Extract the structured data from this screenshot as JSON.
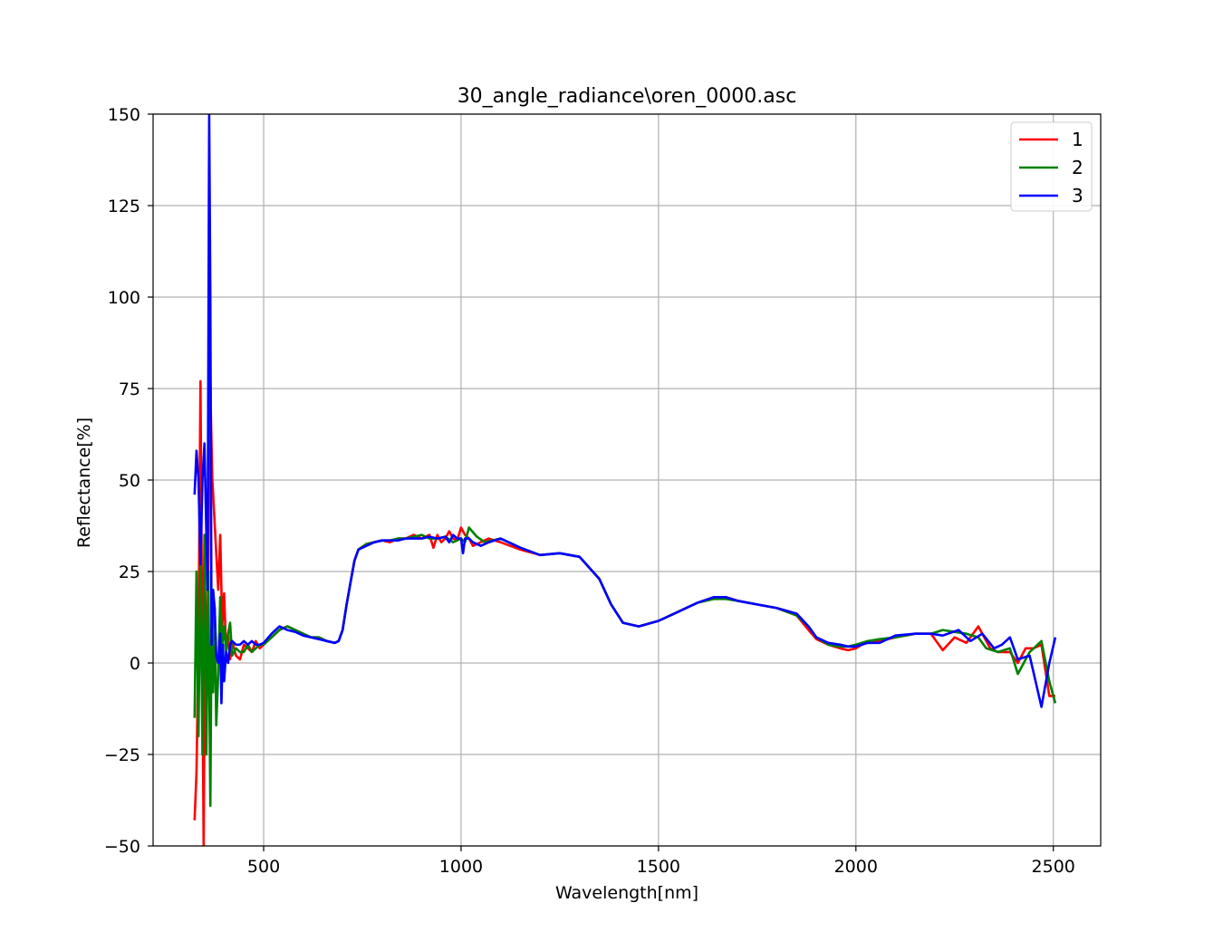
{
  "chart_data": {
    "type": "line",
    "title": "30_angle_radiance\\oren_0000.asc",
    "xlabel": "Wavelength[nm]",
    "ylabel": "Reflectance[%]",
    "xlim": [
      220,
      2620
    ],
    "ylim": [
      -50,
      150
    ],
    "xticks": [
      500,
      1000,
      1500,
      2000,
      2500
    ],
    "yticks": [
      -50,
      -25,
      0,
      25,
      50,
      75,
      100,
      125,
      150
    ],
    "grid": true,
    "legend_position": "top-right",
    "series": [
      {
        "name": "1",
        "color": "#ff0000",
        "points": [
          [
            325,
            -43
          ],
          [
            330,
            -30
          ],
          [
            335,
            5
          ],
          [
            340,
            77
          ],
          [
            345,
            -5
          ],
          [
            348,
            -50
          ],
          [
            352,
            20
          ],
          [
            356,
            -10
          ],
          [
            360,
            30
          ],
          [
            363,
            98
          ],
          [
            366,
            70
          ],
          [
            370,
            50
          ],
          [
            375,
            40
          ],
          [
            380,
            30
          ],
          [
            385,
            20
          ],
          [
            390,
            35
          ],
          [
            395,
            10
          ],
          [
            400,
            19
          ],
          [
            405,
            3
          ],
          [
            410,
            8
          ],
          [
            415,
            1
          ],
          [
            420,
            6
          ],
          [
            430,
            2
          ],
          [
            440,
            1
          ],
          [
            450,
            5
          ],
          [
            460,
            4
          ],
          [
            470,
            3
          ],
          [
            480,
            6
          ],
          [
            490,
            4
          ],
          [
            500,
            5
          ],
          [
            520,
            7
          ],
          [
            540,
            9
          ],
          [
            560,
            10
          ],
          [
            580,
            9
          ],
          [
            600,
            8
          ],
          [
            620,
            7
          ],
          [
            640,
            7
          ],
          [
            660,
            6
          ],
          [
            680,
            5.5
          ],
          [
            690,
            6
          ],
          [
            700,
            9
          ],
          [
            710,
            16
          ],
          [
            720,
            22
          ],
          [
            730,
            28
          ],
          [
            740,
            31
          ],
          [
            760,
            32.5
          ],
          [
            780,
            33
          ],
          [
            800,
            33.5
          ],
          [
            820,
            33
          ],
          [
            840,
            34
          ],
          [
            860,
            34
          ],
          [
            880,
            35
          ],
          [
            900,
            34
          ],
          [
            920,
            35
          ],
          [
            930,
            31.5
          ],
          [
            940,
            35
          ],
          [
            950,
            33
          ],
          [
            960,
            34
          ],
          [
            970,
            36
          ],
          [
            980,
            34
          ],
          [
            990,
            33.5
          ],
          [
            1000,
            37
          ],
          [
            1010,
            35
          ],
          [
            1020,
            34
          ],
          [
            1030,
            32
          ],
          [
            1050,
            33
          ],
          [
            1070,
            34
          ],
          [
            1100,
            33
          ],
          [
            1150,
            31
          ],
          [
            1200,
            29.5
          ],
          [
            1250,
            30
          ],
          [
            1300,
            29
          ],
          [
            1350,
            23
          ],
          [
            1380,
            16
          ],
          [
            1410,
            11
          ],
          [
            1450,
            10
          ],
          [
            1500,
            11.5
          ],
          [
            1550,
            14
          ],
          [
            1600,
            16.5
          ],
          [
            1640,
            18
          ],
          [
            1670,
            18
          ],
          [
            1700,
            17
          ],
          [
            1750,
            16
          ],
          [
            1800,
            15
          ],
          [
            1850,
            13
          ],
          [
            1880,
            9
          ],
          [
            1900,
            6.5
          ],
          [
            1930,
            5
          ],
          [
            1960,
            4
          ],
          [
            1980,
            3.5
          ],
          [
            2000,
            4
          ],
          [
            2030,
            6
          ],
          [
            2060,
            6
          ],
          [
            2100,
            7
          ],
          [
            2150,
            8
          ],
          [
            2190,
            8
          ],
          [
            2220,
            3.5
          ],
          [
            2250,
            7
          ],
          [
            2280,
            5.5
          ],
          [
            2310,
            10
          ],
          [
            2340,
            4
          ],
          [
            2360,
            3
          ],
          [
            2390,
            3
          ],
          [
            2410,
            0
          ],
          [
            2430,
            4
          ],
          [
            2450,
            4
          ],
          [
            2470,
            5
          ],
          [
            2490,
            -9
          ],
          [
            2505,
            -9
          ]
        ]
      },
      {
        "name": "2",
        "color": "#008000",
        "points": [
          [
            325,
            -15
          ],
          [
            330,
            25
          ],
          [
            335,
            -20
          ],
          [
            340,
            30
          ],
          [
            345,
            -25
          ],
          [
            350,
            35
          ],
          [
            355,
            -25
          ],
          [
            360,
            25
          ],
          [
            365,
            -39
          ],
          [
            368,
            10
          ],
          [
            372,
            -8
          ],
          [
            376,
            15
          ],
          [
            380,
            -17
          ],
          [
            385,
            -3
          ],
          [
            390,
            18
          ],
          [
            395,
            5
          ],
          [
            400,
            10
          ],
          [
            405,
            3
          ],
          [
            410,
            8
          ],
          [
            415,
            11
          ],
          [
            420,
            2
          ],
          [
            430,
            4
          ],
          [
            440,
            3
          ],
          [
            450,
            3
          ],
          [
            460,
            5
          ],
          [
            470,
            3
          ],
          [
            480,
            4
          ],
          [
            490,
            5
          ],
          [
            500,
            5
          ],
          [
            520,
            7
          ],
          [
            540,
            9
          ],
          [
            560,
            10
          ],
          [
            580,
            9
          ],
          [
            600,
            8
          ],
          [
            620,
            7
          ],
          [
            640,
            7
          ],
          [
            660,
            6
          ],
          [
            680,
            5.5
          ],
          [
            690,
            6
          ],
          [
            700,
            9
          ],
          [
            710,
            16
          ],
          [
            720,
            22
          ],
          [
            730,
            28
          ],
          [
            740,
            31
          ],
          [
            760,
            32.5
          ],
          [
            780,
            33
          ],
          [
            800,
            33.5
          ],
          [
            820,
            33.5
          ],
          [
            840,
            34
          ],
          [
            860,
            34
          ],
          [
            880,
            34.5
          ],
          [
            900,
            35
          ],
          [
            920,
            34
          ],
          [
            940,
            34
          ],
          [
            960,
            34.5
          ],
          [
            980,
            33
          ],
          [
            1000,
            34
          ],
          [
            1010,
            33
          ],
          [
            1020,
            37
          ],
          [
            1040,
            34.5
          ],
          [
            1060,
            33
          ],
          [
            1080,
            33.5
          ],
          [
            1100,
            34
          ],
          [
            1150,
            31.5
          ],
          [
            1200,
            29.5
          ],
          [
            1250,
            30
          ],
          [
            1300,
            29
          ],
          [
            1350,
            23
          ],
          [
            1380,
            16
          ],
          [
            1410,
            11
          ],
          [
            1450,
            10
          ],
          [
            1500,
            11.5
          ],
          [
            1550,
            14
          ],
          [
            1600,
            16.5
          ],
          [
            1640,
            17.5
          ],
          [
            1670,
            17.5
          ],
          [
            1700,
            17
          ],
          [
            1750,
            16
          ],
          [
            1800,
            15
          ],
          [
            1850,
            13
          ],
          [
            1880,
            10
          ],
          [
            1900,
            7
          ],
          [
            1930,
            5
          ],
          [
            1960,
            4.5
          ],
          [
            1980,
            4.5
          ],
          [
            2000,
            5
          ],
          [
            2030,
            6
          ],
          [
            2060,
            6.5
          ],
          [
            2100,
            7
          ],
          [
            2150,
            8
          ],
          [
            2190,
            8
          ],
          [
            2220,
            9
          ],
          [
            2250,
            8.5
          ],
          [
            2280,
            8
          ],
          [
            2310,
            7
          ],
          [
            2330,
            4
          ],
          [
            2360,
            3
          ],
          [
            2390,
            4
          ],
          [
            2410,
            -3
          ],
          [
            2440,
            3
          ],
          [
            2470,
            6
          ],
          [
            2490,
            -5
          ],
          [
            2505,
            -11
          ]
        ]
      },
      {
        "name": "3",
        "color": "#0000ff",
        "points": [
          [
            325,
            46
          ],
          [
            330,
            58
          ],
          [
            335,
            50
          ],
          [
            340,
            27
          ],
          [
            345,
            50
          ],
          [
            350,
            60
          ],
          [
            354,
            40
          ],
          [
            358,
            20
          ],
          [
            362,
            150
          ],
          [
            365,
            100
          ],
          [
            368,
            5
          ],
          [
            372,
            20
          ],
          [
            376,
            15
          ],
          [
            380,
            2
          ],
          [
            385,
            0
          ],
          [
            390,
            8
          ],
          [
            393,
            -11
          ],
          [
            397,
            5
          ],
          [
            400,
            -5
          ],
          [
            405,
            3
          ],
          [
            410,
            0
          ],
          [
            415,
            5
          ],
          [
            420,
            6
          ],
          [
            430,
            5
          ],
          [
            440,
            5
          ],
          [
            450,
            6
          ],
          [
            460,
            5
          ],
          [
            470,
            6
          ],
          [
            480,
            5
          ],
          [
            490,
            5
          ],
          [
            500,
            5.5
          ],
          [
            520,
            8
          ],
          [
            540,
            10
          ],
          [
            560,
            9
          ],
          [
            580,
            8.5
          ],
          [
            600,
            7.5
          ],
          [
            620,
            7
          ],
          [
            640,
            6.5
          ],
          [
            660,
            6
          ],
          [
            680,
            5.5
          ],
          [
            690,
            6
          ],
          [
            700,
            9
          ],
          [
            710,
            16
          ],
          [
            720,
            22
          ],
          [
            730,
            28
          ],
          [
            740,
            31
          ],
          [
            760,
            32
          ],
          [
            780,
            33
          ],
          [
            800,
            33.5
          ],
          [
            820,
            33.5
          ],
          [
            840,
            33.5
          ],
          [
            860,
            34
          ],
          [
            880,
            34
          ],
          [
            900,
            34
          ],
          [
            920,
            34.5
          ],
          [
            940,
            34
          ],
          [
            960,
            34.5
          ],
          [
            970,
            33
          ],
          [
            980,
            35
          ],
          [
            990,
            34
          ],
          [
            1000,
            34
          ],
          [
            1005,
            30
          ],
          [
            1010,
            34
          ],
          [
            1020,
            34
          ],
          [
            1030,
            33
          ],
          [
            1050,
            32
          ],
          [
            1070,
            33
          ],
          [
            1100,
            34
          ],
          [
            1150,
            31.5
          ],
          [
            1200,
            29.5
          ],
          [
            1250,
            30
          ],
          [
            1300,
            29
          ],
          [
            1350,
            23
          ],
          [
            1380,
            16
          ],
          [
            1410,
            11
          ],
          [
            1450,
            10
          ],
          [
            1500,
            11.5
          ],
          [
            1550,
            14
          ],
          [
            1600,
            16.5
          ],
          [
            1640,
            18
          ],
          [
            1670,
            18
          ],
          [
            1700,
            17
          ],
          [
            1750,
            16
          ],
          [
            1800,
            15
          ],
          [
            1850,
            13.5
          ],
          [
            1880,
            10
          ],
          [
            1900,
            7
          ],
          [
            1930,
            5.5
          ],
          [
            1960,
            5
          ],
          [
            1980,
            4.5
          ],
          [
            2000,
            4.5
          ],
          [
            2030,
            5.5
          ],
          [
            2060,
            5.5
          ],
          [
            2100,
            7.5
          ],
          [
            2150,
            8
          ],
          [
            2190,
            8
          ],
          [
            2220,
            7.5
          ],
          [
            2260,
            9
          ],
          [
            2290,
            6
          ],
          [
            2320,
            8
          ],
          [
            2350,
            4
          ],
          [
            2370,
            5
          ],
          [
            2390,
            7
          ],
          [
            2410,
            1
          ],
          [
            2440,
            2
          ],
          [
            2470,
            -12
          ],
          [
            2490,
            0
          ],
          [
            2505,
            7
          ]
        ]
      }
    ]
  }
}
